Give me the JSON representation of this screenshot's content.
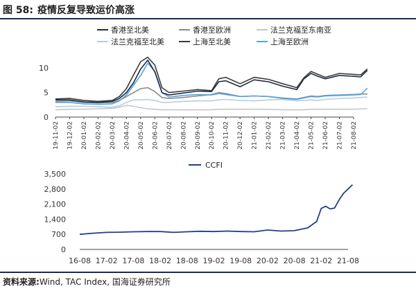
{
  "figure": {
    "number": "图 58:",
    "title": "疫情反复导致运价高涨",
    "source_label": "资料来源:",
    "source_text": "Wind, TAC Index, 国海证券研究所"
  },
  "chart_data": [
    {
      "type": "line",
      "title": "",
      "xlabel": "",
      "ylabel": "",
      "ylim": [
        0,
        12
      ],
      "y_ticks": [
        0,
        5,
        10
      ],
      "grid": false,
      "legend_placement": "top",
      "x_tick_labels": [
        "19-11-02",
        "19-12-02",
        "20-01-02",
        "20-02-02",
        "20-03-02",
        "20-04-02",
        "20-05-02",
        "20-06-02",
        "20-07-02",
        "20-08-02",
        "20-09-02",
        "20-10-02",
        "20-11-02",
        "20-12-02",
        "21-01-02",
        "21-02-02",
        "21-03-02",
        "21-04-02",
        "21-05-02",
        "21-06-02",
        "21-07-02",
        "21-08-02"
      ],
      "x": [
        "19-11-02",
        "19-12-02",
        "20-01-02",
        "20-02-02",
        "20-03-02",
        "20-03-17",
        "20-04-02",
        "20-04-17",
        "20-05-02",
        "20-05-17",
        "20-06-02",
        "20-06-17",
        "20-07-02",
        "20-08-02",
        "20-09-02",
        "20-10-02",
        "20-10-17",
        "20-11-02",
        "20-12-02",
        "21-01-02",
        "21-02-02",
        "21-03-02",
        "21-04-02",
        "21-04-17",
        "21-05-02",
        "21-05-17",
        "21-06-02",
        "21-07-02",
        "21-08-02",
        "21-08-17",
        "21-09-01"
      ],
      "series": [
        {
          "name": "香港至北美",
          "color": "#1f2a44",
          "values": [
            3.5,
            3.5,
            3.1,
            3.0,
            3.2,
            3.8,
            5.0,
            7.0,
            9.8,
            11.6,
            9.2,
            5.0,
            4.5,
            4.9,
            5.3,
            5.2,
            7.2,
            7.4,
            6.2,
            7.6,
            7.2,
            6.3,
            5.6,
            7.8,
            8.9,
            8.3,
            7.8,
            8.5,
            8.3,
            8.2,
            9.5
          ]
        },
        {
          "name": "香港至欧洲",
          "color": "#8a8a8a",
          "values": [
            3.2,
            3.3,
            3.0,
            2.9,
            3.0,
            3.4,
            4.2,
            5.0,
            5.8,
            6.0,
            5.2,
            4.0,
            3.8,
            4.0,
            4.3,
            4.6,
            5.0,
            4.8,
            4.2,
            4.3,
            4.2,
            3.9,
            3.7,
            4.0,
            4.3,
            4.2,
            4.4,
            4.5,
            4.6,
            4.7,
            4.7
          ]
        },
        {
          "name": "法兰克福至东南亚",
          "color": "#c6c6c6",
          "values": [
            1.5,
            1.6,
            1.6,
            1.7,
            1.8,
            2.0,
            2.4,
            2.2,
            1.9,
            1.7,
            1.6,
            1.5,
            1.5,
            1.5,
            1.5,
            1.5,
            1.6,
            1.6,
            1.6,
            1.6,
            1.6,
            1.5,
            1.5,
            1.5,
            1.6,
            1.6,
            1.6,
            1.6,
            1.6,
            1.7,
            1.7
          ]
        },
        {
          "name": "法兰克福至北美",
          "color": "#b7cbe6",
          "values": [
            2.1,
            2.2,
            2.2,
            2.1,
            2.0,
            2.3,
            3.0,
            3.5,
            3.5,
            3.6,
            3.4,
            3.0,
            3.0,
            3.2,
            3.3,
            3.3,
            3.5,
            3.6,
            3.4,
            3.3,
            3.5,
            3.6,
            3.3,
            3.4,
            3.5,
            3.4,
            3.6,
            3.8,
            3.9,
            4.0,
            4.1
          ]
        },
        {
          "name": "上海至北美",
          "color": "#3a3a3a",
          "values": [
            3.7,
            3.8,
            3.4,
            3.2,
            3.4,
            4.2,
            5.8,
            8.6,
            11.3,
            12.2,
            10.6,
            6.0,
            5.0,
            5.3,
            5.6,
            5.4,
            7.8,
            8.1,
            6.8,
            8.1,
            7.7,
            6.8,
            6.0,
            8.0,
            9.3,
            8.7,
            8.1,
            8.9,
            8.7,
            8.6,
            9.8
          ]
        },
        {
          "name": "上海至欧洲",
          "color": "#4da6e8",
          "values": [
            3.0,
            3.0,
            2.7,
            2.6,
            2.7,
            3.3,
            4.5,
            6.5,
            8.5,
            11.0,
            9.3,
            5.0,
            4.1,
            4.4,
            4.6,
            4.5,
            4.8,
            4.6,
            4.2,
            4.3,
            4.2,
            3.8,
            3.6,
            3.9,
            4.2,
            4.1,
            4.3,
            4.4,
            4.5,
            4.6,
            5.9
          ]
        }
      ]
    },
    {
      "type": "line",
      "title": "",
      "xlabel": "",
      "ylabel": "",
      "ylim": [
        0,
        3500
      ],
      "y_ticks": [
        0,
        700,
        1400,
        2100,
        2800,
        3500
      ],
      "y_tick_labels": [
        "0",
        "700",
        "1,400",
        "2,100",
        "2,800",
        "3,500"
      ],
      "grid": false,
      "legend_placement": "top",
      "x_tick_labels": [
        "16-08",
        "17-02",
        "17-08",
        "18-02",
        "18-08",
        "19-02",
        "19-08",
        "20-02",
        "20-08",
        "21-02",
        "21-08"
      ],
      "x": [
        "16-08",
        "16-11",
        "17-02",
        "17-05",
        "17-08",
        "17-11",
        "18-02",
        "18-05",
        "18-08",
        "18-11",
        "19-02",
        "19-05",
        "19-08",
        "19-11",
        "20-02",
        "20-05",
        "20-08",
        "20-11",
        "21-01",
        "21-02",
        "21-03",
        "21-04",
        "21-05",
        "21-06",
        "21-07",
        "21-08",
        "21-09"
      ],
      "series": [
        {
          "name": "CCFI",
          "color": "#1f3f88",
          "values": [
            700,
            750,
            790,
            800,
            820,
            830,
            830,
            790,
            820,
            840,
            830,
            850,
            830,
            820,
            900,
            850,
            870,
            1000,
            1300,
            1900,
            2000,
            1880,
            1920,
            2300,
            2600,
            2800,
            3000
          ]
        }
      ]
    }
  ]
}
